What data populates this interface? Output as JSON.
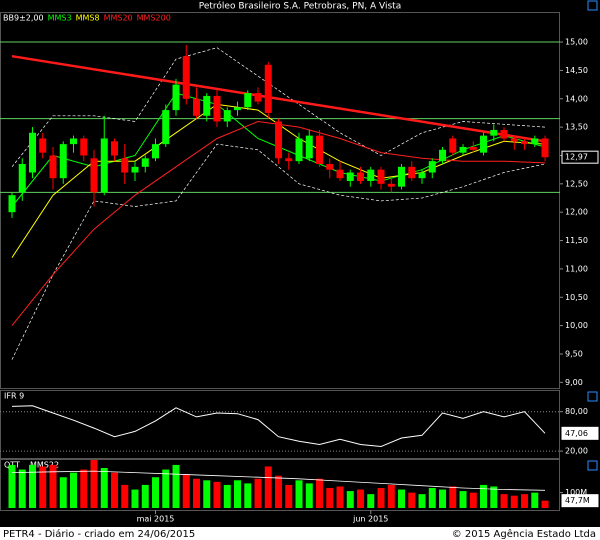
{
  "chart_data": [
    {
      "type": "candlestick",
      "title": "Petróleo Brasileiro S.A. Petrobras, PN, A Vista",
      "xlim": [
        -1.17,
        53.46
      ],
      "ylim": [
        8.9,
        15.53
      ],
      "yticks": [
        {
          "value": 15,
          "label": "15,00"
        },
        {
          "value": 14.5,
          "label": "14,50"
        },
        {
          "value": 14,
          "label": "14,00"
        },
        {
          "value": 13.5,
          "label": "13,50"
        },
        {
          "value": 13,
          "label": "13,00"
        },
        {
          "value": 12.5,
          "label": "12,50"
        },
        {
          "value": 12,
          "label": "12,00"
        },
        {
          "value": 11.5,
          "label": "11,50"
        },
        {
          "value": 11,
          "label": "11,00"
        },
        {
          "value": 10.5,
          "label": "10,50"
        },
        {
          "value": 10,
          "label": "10,00"
        },
        {
          "value": 9.5,
          "label": "9,50"
        },
        {
          "value": 9,
          "label": "9,00"
        }
      ],
      "up_color": "#00ff00",
      "down_color": "#ff0000",
      "candles": {
        "open": [
          12.0,
          12.35,
          12.7,
          13.3,
          13.0,
          12.6,
          13.2,
          13.3,
          12.95,
          12.35,
          13.25,
          12.95,
          12.7,
          12.8,
          12.95,
          13.2,
          13.8,
          14.75,
          14.0,
          13.7,
          14.05,
          13.6,
          13.8,
          13.85,
          14.1,
          14.6,
          13.6,
          12.95,
          12.9,
          12.95,
          13.35,
          12.85,
          12.75,
          12.55,
          12.7,
          12.55,
          12.75,
          12.5,
          12.45,
          12.8,
          12.6,
          12.7,
          12.9,
          13.3,
          13.05,
          13.15,
          13.05,
          13.35,
          13.45,
          13.3,
          13.25,
          13.2,
          13.3
        ],
        "high": [
          12.35,
          12.95,
          13.5,
          13.4,
          13.15,
          13.25,
          13.35,
          13.35,
          13.1,
          13.7,
          13.3,
          13.2,
          12.9,
          13.0,
          13.3,
          13.9,
          14.35,
          14.95,
          14.2,
          14.1,
          14.15,
          13.85,
          13.95,
          14.15,
          14.2,
          14.65,
          13.65,
          13.05,
          13.4,
          13.45,
          13.45,
          12.95,
          12.9,
          12.75,
          12.8,
          12.8,
          12.8,
          12.6,
          12.85,
          12.9,
          12.75,
          12.95,
          13.15,
          13.35,
          13.2,
          13.25,
          13.4,
          13.55,
          13.5,
          13.35,
          13.3,
          13.35,
          13.35
        ],
        "low": [
          11.9,
          12.2,
          12.6,
          12.95,
          12.4,
          12.5,
          13.05,
          12.9,
          12.1,
          12.3,
          12.9,
          12.5,
          12.55,
          12.7,
          12.9,
          13.15,
          13.7,
          13.9,
          13.65,
          13.6,
          13.5,
          13.5,
          13.7,
          13.8,
          13.9,
          13.65,
          12.85,
          12.75,
          12.85,
          12.9,
          12.8,
          12.6,
          12.55,
          12.45,
          12.5,
          12.45,
          12.4,
          12.35,
          12.4,
          12.55,
          12.5,
          12.6,
          12.85,
          13.0,
          13.0,
          13.05,
          13.0,
          13.25,
          13.25,
          13.1,
          13.1,
          13.15,
          12.9
        ],
        "close": [
          12.3,
          12.85,
          13.4,
          13.05,
          12.6,
          13.2,
          13.3,
          13.0,
          12.35,
          13.3,
          13.0,
          12.7,
          12.8,
          12.95,
          13.2,
          13.8,
          14.25,
          14.0,
          13.7,
          14.05,
          13.6,
          13.8,
          13.85,
          14.1,
          13.95,
          13.75,
          12.95,
          12.9,
          13.3,
          13.35,
          12.85,
          12.75,
          12.6,
          12.7,
          12.55,
          12.75,
          12.5,
          12.45,
          12.8,
          12.6,
          12.7,
          12.9,
          13.1,
          13.05,
          13.15,
          13.1,
          13.35,
          13.45,
          13.3,
          13.25,
          13.2,
          13.3,
          12.97
        ],
        "last_value_label": "12,97"
      },
      "series": [
        {
          "name": "BB9±2,00",
          "color": "#ffffff",
          "dashed": true,
          "x": [
            0,
            4,
            8,
            12,
            16,
            20,
            24,
            28,
            32,
            36,
            40,
            44,
            48,
            52
          ],
          "upper": [
            12.8,
            13.7,
            13.7,
            13.6,
            14.7,
            14.9,
            14.4,
            13.9,
            13.4,
            13.0,
            13.4,
            13.6,
            13.55,
            13.5
          ],
          "lower": [
            9.4,
            10.9,
            12.2,
            12.1,
            12.2,
            13.2,
            13.1,
            12.5,
            12.3,
            12.2,
            12.25,
            12.45,
            12.7,
            12.85
          ]
        },
        {
          "name": "MMS3",
          "color": "#00ff00",
          "x": [
            0,
            4,
            8,
            12,
            16,
            20,
            24,
            28,
            32,
            36,
            40,
            44,
            48,
            52
          ],
          "values": [
            12.1,
            13.0,
            12.8,
            13.0,
            14.1,
            13.9,
            13.3,
            13.0,
            12.7,
            12.55,
            12.75,
            13.1,
            13.35,
            13.15
          ]
        },
        {
          "name": "MMS8",
          "color": "#ffff00",
          "x": [
            0,
            4,
            8,
            12,
            16,
            20,
            24,
            28,
            32,
            36,
            40,
            44,
            48,
            52
          ],
          "values": [
            11.2,
            12.3,
            12.9,
            12.9,
            13.4,
            13.9,
            13.8,
            13.3,
            12.9,
            12.6,
            12.7,
            13.0,
            13.25,
            13.2
          ]
        },
        {
          "name": "MMS20",
          "color": "#ff2020",
          "x": [
            0,
            4,
            8,
            12,
            16,
            20,
            24,
            28,
            32,
            36,
            40,
            44,
            48,
            52
          ],
          "values": [
            10.0,
            10.9,
            11.7,
            12.3,
            12.8,
            13.3,
            13.6,
            13.5,
            13.3,
            13.05,
            12.95,
            12.9,
            12.9,
            12.87
          ]
        },
        {
          "name": "MMS200",
          "color": "#ff2020"
        }
      ],
      "hlines": [
        15.0,
        13.65,
        12.35
      ],
      "hline_color": "#5fd35f",
      "trendline": {
        "x": [
          0,
          52
        ],
        "values": [
          14.75,
          13.25
        ],
        "color": "#ff1a1a"
      }
    },
    {
      "type": "line",
      "title": "IFR 9",
      "xlim": [
        -1.17,
        53.46
      ],
      "ylim": [
        9.5,
        111.5
      ],
      "yticks": [
        {
          "value": 80,
          "label": "80,00"
        },
        {
          "value": 20,
          "label": "20,00"
        }
      ],
      "grid": true,
      "color": "#ffffff",
      "x": [
        0,
        2,
        4,
        6,
        8,
        10,
        12,
        14,
        16,
        18,
        20,
        22,
        24,
        26,
        28,
        30,
        32,
        34,
        36,
        38,
        40,
        42,
        44,
        46,
        48,
        50,
        52
      ],
      "values": [
        88,
        89,
        78,
        67,
        55,
        42,
        50,
        66,
        86,
        72,
        78,
        77,
        68,
        42,
        35,
        30,
        38,
        30,
        27,
        40,
        44,
        78,
        70,
        80,
        72,
        80,
        47.06
      ],
      "last_value_label": "47,06"
    },
    {
      "type": "bar",
      "title": "QTT",
      "xlim": [
        -1.17,
        53.46
      ],
      "ylim": [
        0,
        312
      ],
      "yticks": [
        {
          "value": 100,
          "label": "100M"
        }
      ],
      "xticks": [
        {
          "value": 14,
          "label": "mai 2015"
        },
        {
          "value": 35,
          "label": "jun 2015"
        }
      ],
      "values": [
        280,
        250,
        280,
        270,
        280,
        200,
        230,
        250,
        312,
        260,
        230,
        150,
        120,
        150,
        200,
        250,
        280,
        220,
        190,
        180,
        170,
        150,
        180,
        160,
        190,
        270,
        210,
        150,
        180,
        160,
        190,
        130,
        140,
        110,
        120,
        90,
        130,
        150,
        120,
        100,
        90,
        130,
        120,
        140,
        110,
        100,
        150,
        140,
        90,
        80,
        90,
        100,
        47.7
      ],
      "last_value_label": "47,7M",
      "average": {
        "name": "MMS22",
        "color": "#ffffff",
        "x": [
          0,
          4,
          8,
          12,
          16,
          20,
          24,
          28,
          32,
          36,
          40,
          44,
          48,
          52
        ],
        "values": [
          230,
          235,
          240,
          230,
          220,
          210,
          200,
          190,
          175,
          160,
          145,
          130,
          120,
          115
        ]
      }
    }
  ],
  "footer": {
    "left": "PETR4 - Diário - criado em 24/06/2015",
    "right": "© 2015 Agência Estado Ltda"
  }
}
